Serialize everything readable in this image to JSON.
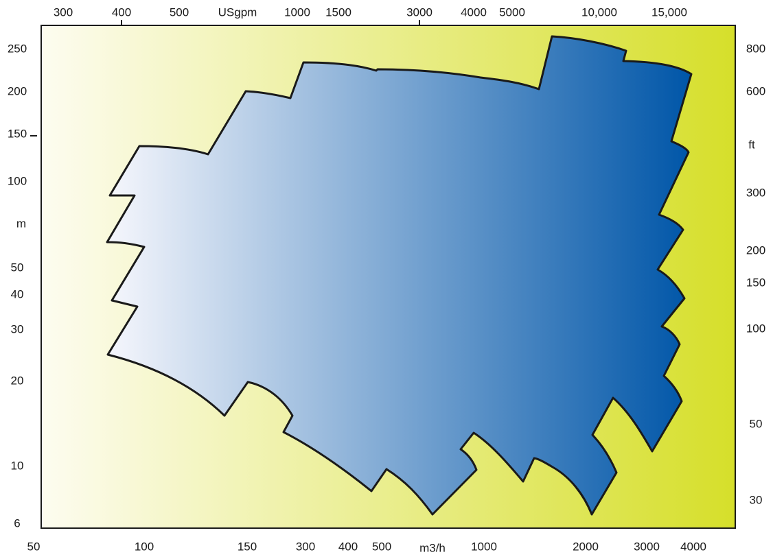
{
  "chart_data": {
    "type": "area",
    "title": "",
    "colors": {
      "background_left": "#fdfcf0",
      "background_right": "#d6df2a",
      "envelope_left": "#f5f6fc",
      "envelope_right": "#0056a8",
      "outline": "#1a1a1a"
    },
    "grid": false,
    "legend": "none",
    "axes": {
      "bottom": {
        "unit_label": "m3/h",
        "ticks": [
          "50",
          "100",
          "150",
          "300",
          "400",
          "500",
          "1000",
          "2000",
          "3000",
          "4000"
        ]
      },
      "top": {
        "unit_label": "USgpm",
        "ticks": [
          "300",
          "400",
          "500",
          "1000",
          "1500",
          "3000",
          "4000",
          "5000",
          "10,000",
          "15,000"
        ]
      },
      "left": {
        "unit_label": "m",
        "ticks": [
          "250",
          "200",
          "150",
          "100",
          "50",
          "40",
          "30",
          "20",
          "10",
          "6"
        ]
      },
      "right": {
        "unit_label": "ft",
        "ticks": [
          "800",
          "600",
          "300",
          "200",
          "150",
          "100",
          "50",
          "30"
        ]
      }
    },
    "series": [
      {
        "outline": [
          [
            "m3/h",
            "m"
          ],
          [
            100,
            140
          ],
          [
            210,
            195
          ],
          [
            320,
            232
          ],
          [
            560,
            225
          ],
          [
            1500,
            200
          ],
          [
            1650,
            265
          ],
          [
            3700,
            215
          ],
          [
            3500,
            138
          ],
          [
            2950,
            88
          ],
          [
            3300,
            52
          ],
          [
            3150,
            38
          ],
          [
            3350,
            28
          ],
          [
            3200,
            23
          ],
          [
            3500,
            18
          ],
          [
            3300,
            13
          ],
          [
            2500,
            17
          ],
          [
            2050,
            12
          ],
          [
            2400,
            9
          ],
          [
            2100,
            7
          ],
          [
            1450,
            10.5
          ],
          [
            1350,
            8.5
          ],
          [
            1100,
            12.5
          ],
          [
            1050,
            11
          ],
          [
            1150,
            9
          ],
          [
            820,
            6.8
          ],
          [
            500,
            9.2
          ],
          [
            430,
            8
          ],
          [
            270,
            12.5
          ],
          [
            280,
            14
          ],
          [
            160,
            19.5
          ],
          [
            130,
            15
          ],
          [
            70,
            25
          ],
          [
            90,
            36
          ],
          [
            70,
            39
          ],
          [
            100,
            60
          ],
          [
            70,
            65
          ],
          [
            95,
            90
          ],
          [
            70,
            90
          ]
        ]
      }
    ]
  }
}
